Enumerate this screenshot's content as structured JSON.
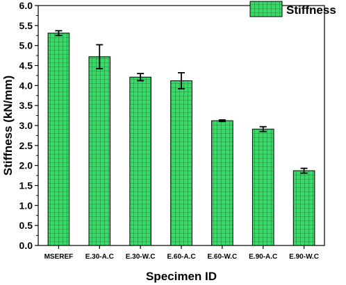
{
  "chart_data": {
    "type": "bar",
    "categories": [
      "MSEREF",
      "E.30-A.C",
      "E.30-W.C",
      "E.60-A.C",
      "E.60-W.C",
      "E.90-A.C",
      "E.90-W.C"
    ],
    "series": [
      {
        "name": "Stiffness",
        "values": [
          5.31,
          4.72,
          4.21,
          4.12,
          3.12,
          2.91,
          1.87
        ],
        "errors": [
          0.06,
          0.3,
          0.09,
          0.2,
          0.02,
          0.06,
          0.06
        ]
      }
    ],
    "ylabel": "Stiffness (kN/mm)",
    "xlabel": "Specimen ID",
    "ylim": [
      0.0,
      6.0
    ],
    "ytick_step": 0.5,
    "yticks": [
      "0.0",
      "0.5",
      "1.0",
      "1.5",
      "2.0",
      "2.5",
      "3.0",
      "3.5",
      "4.0",
      "4.5",
      "5.0",
      "5.5",
      "6.0"
    ],
    "grid": false,
    "legend_position": "top-right",
    "bar_fill": "#33dd66",
    "bar_hatch": "grid"
  }
}
